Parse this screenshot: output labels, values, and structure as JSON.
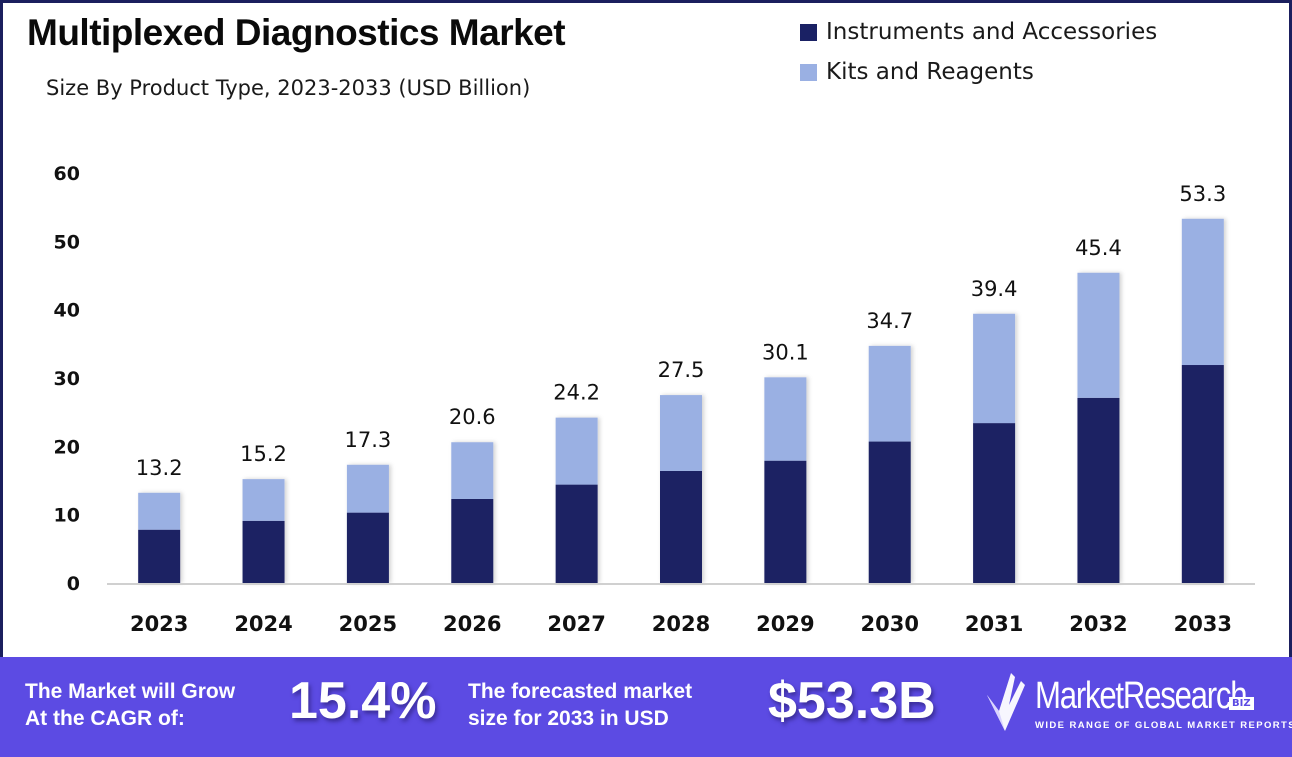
{
  "header": {
    "title": "Multiplexed Diagnostics Market",
    "subtitle": "Size By Product Type, 2023-2033 (USD Billion)"
  },
  "legend": [
    {
      "label": "Instruments and Accessories",
      "color": "#1a2164"
    },
    {
      "label": "Kits and Reagents",
      "color": "#9ab0e3"
    }
  ],
  "chart_data": {
    "type": "bar",
    "stacked": true,
    "title": "Multiplexed Diagnostics Market",
    "subtitle": "Size By Product Type, 2023-2033 (USD Billion)",
    "xlabel": "",
    "ylabel": "",
    "ylim": [
      0,
      60
    ],
    "yticks": [
      0,
      10,
      20,
      30,
      40,
      50,
      60
    ],
    "grid": false,
    "legend_position": "top-right",
    "categories": [
      "2023",
      "2024",
      "2025",
      "2026",
      "2027",
      "2028",
      "2029",
      "2030",
      "2031",
      "2032",
      "2033"
    ],
    "series": [
      {
        "name": "Instruments and Accessories",
        "color": "#1a2164",
        "values": [
          7.8,
          9.1,
          10.3,
          12.3,
          14.4,
          16.4,
          17.9,
          20.7,
          23.4,
          27.1,
          31.9
        ]
      },
      {
        "name": "Kits and Reagents",
        "color": "#9ab0e3",
        "values": [
          5.4,
          6.1,
          7.0,
          8.3,
          9.8,
          11.1,
          12.2,
          14.0,
          16.0,
          18.3,
          21.4
        ]
      }
    ],
    "totals": [
      13.2,
      15.2,
      17.3,
      20.6,
      24.2,
      27.5,
      30.1,
      34.7,
      39.4,
      45.4,
      53.3
    ],
    "total_labels": [
      "13.2",
      "15.2",
      "17.3",
      "20.6",
      "24.2",
      "27.5",
      "30.1",
      "34.7",
      "39.4",
      "45.4",
      "53.3"
    ]
  },
  "banner": {
    "cagr_text_line1": "The Market will Grow",
    "cagr_text_line2": "At the CAGR of:",
    "cagr_value": "15.4%",
    "forecast_text_line1": "The forecasted market",
    "forecast_text_line2": "size for 2033 in USD",
    "forecast_value": "$53.3B",
    "background_color": "#5c4be3"
  },
  "logo": {
    "name": "MarketResearch",
    "badge": "BIZ",
    "tagline": "WIDE RANGE OF GLOBAL MARKET REPORTS",
    "icon": "check-chevron-logo-icon"
  }
}
